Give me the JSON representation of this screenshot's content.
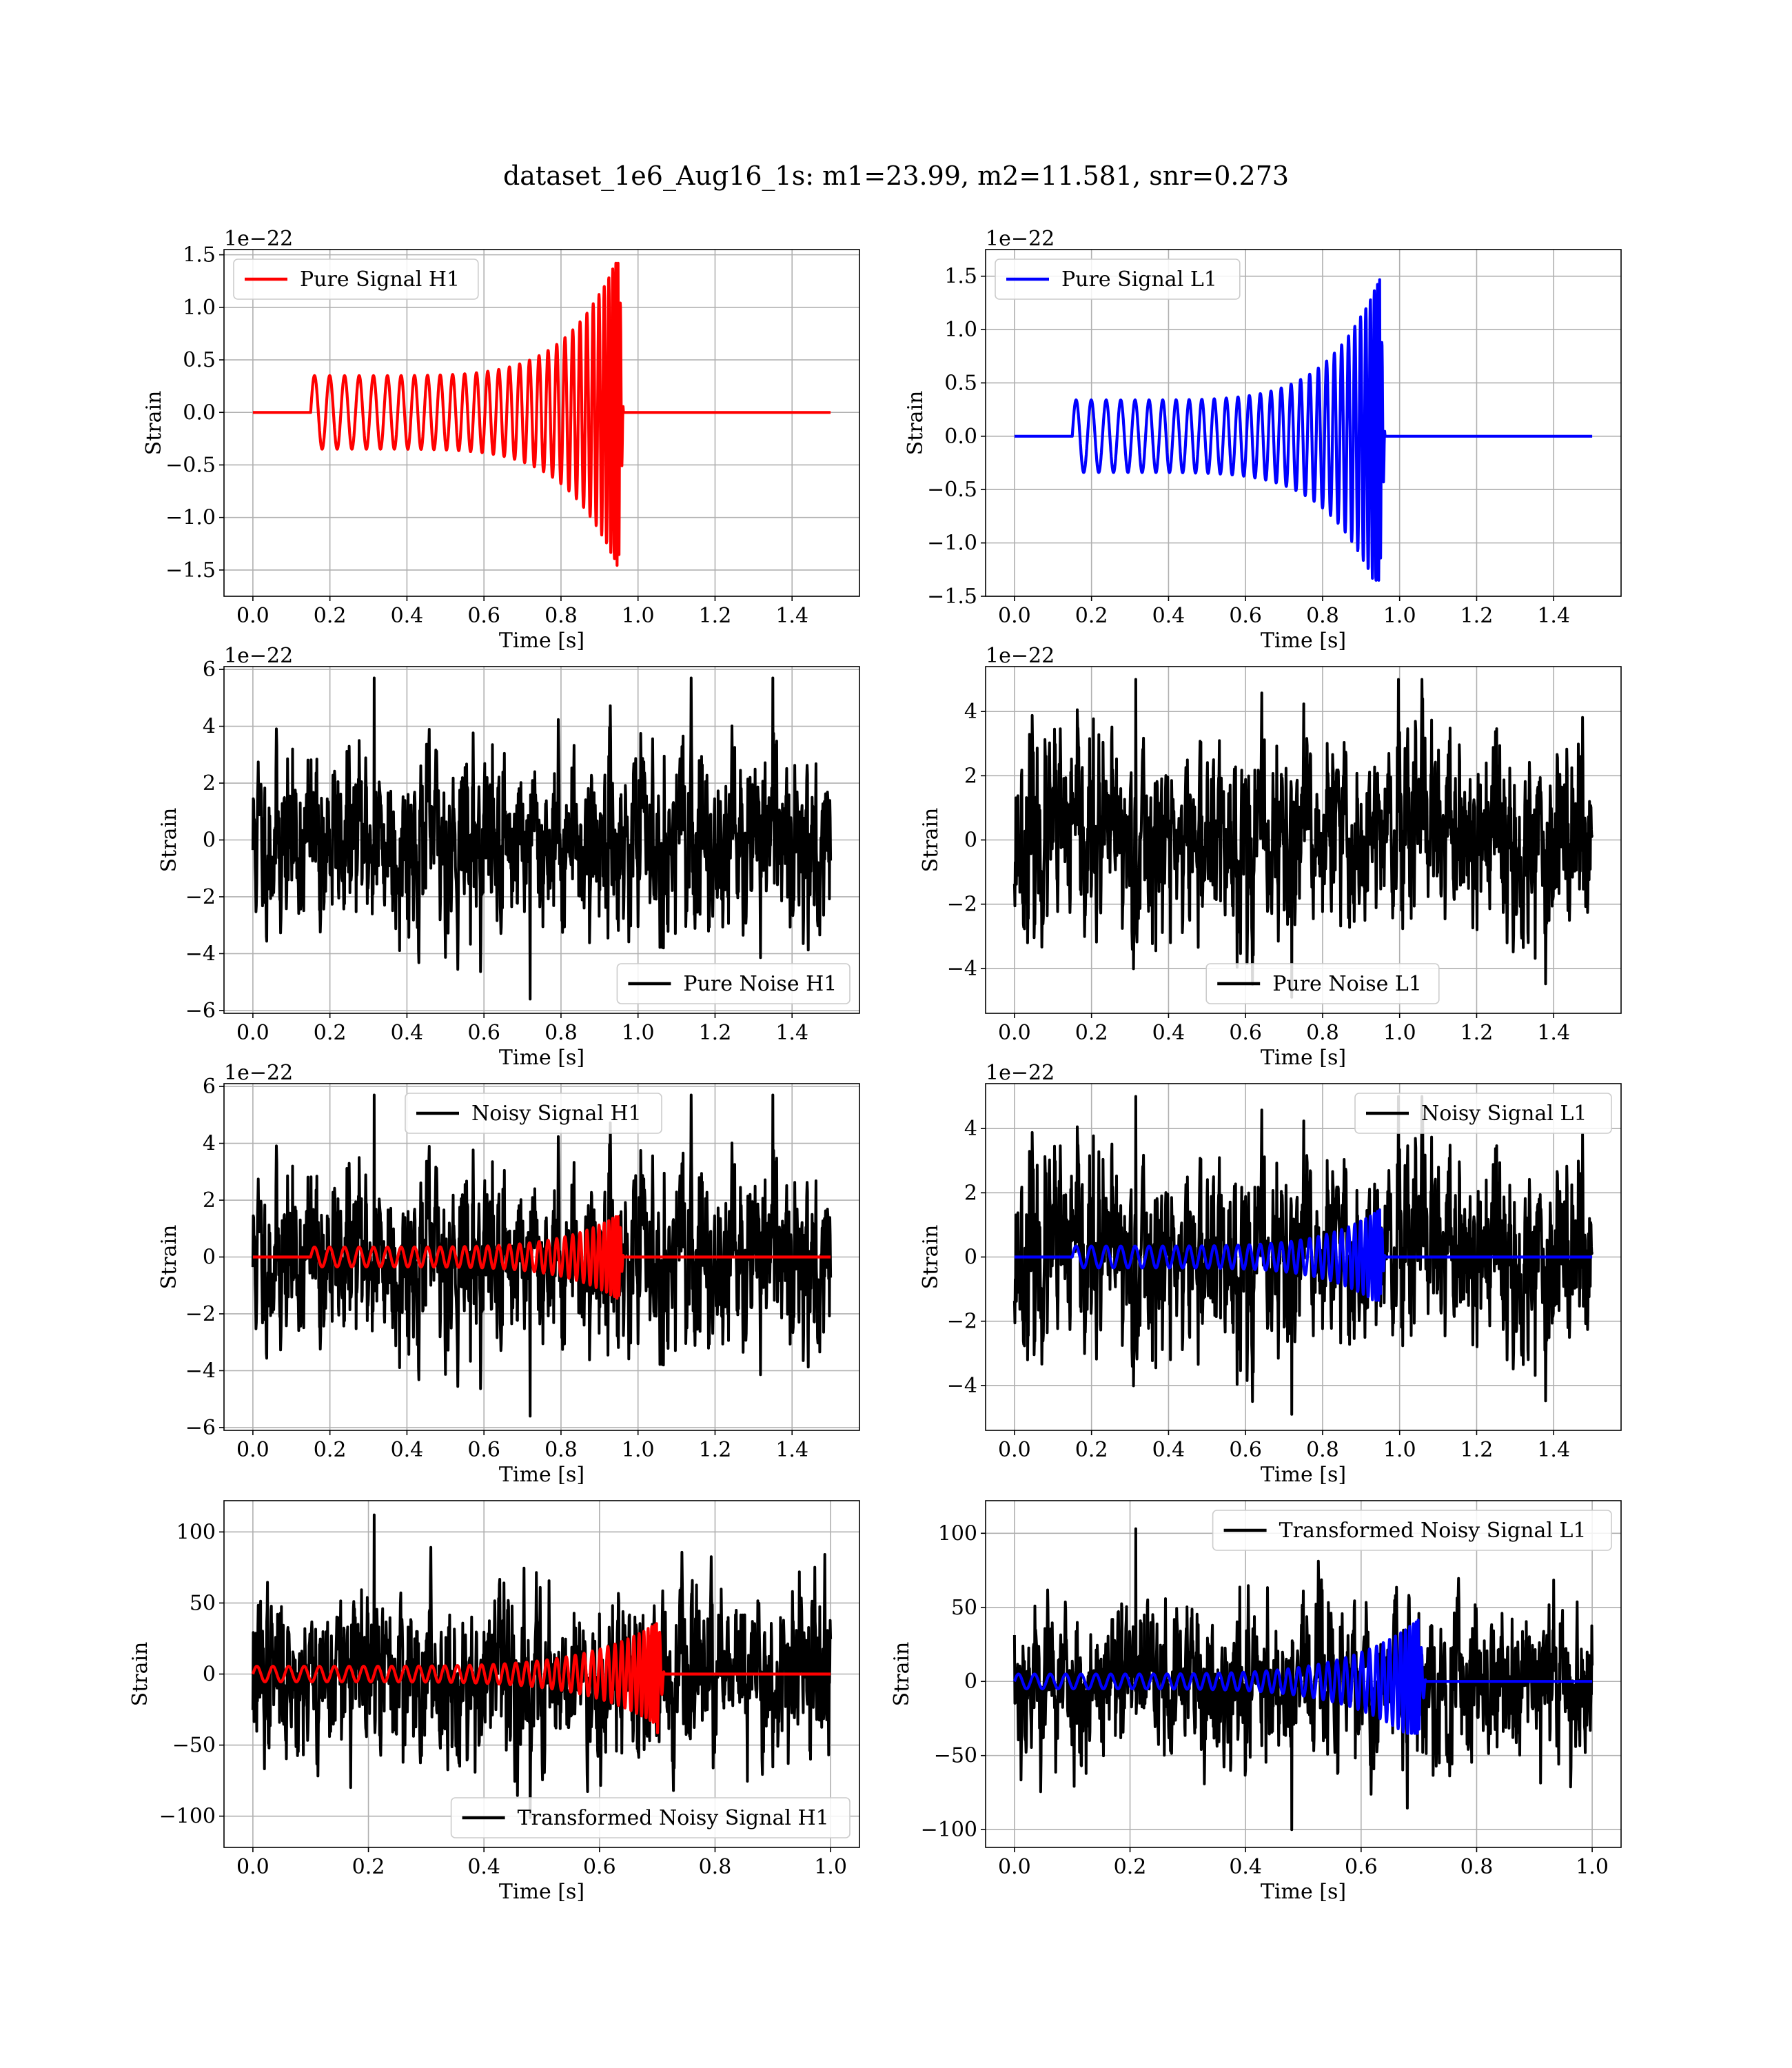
{
  "figure": {
    "title": "dataset_1e6_Aug16_1s: m1=23.99, m2=11.581, snr=0.273",
    "colors": {
      "h1_signal": "#ff0000",
      "l1_signal": "#0000ff",
      "noise": "#000000",
      "grid": "#b0b0b0"
    }
  },
  "chart_data": [
    {
      "id": "pure-signal-h1",
      "type": "line",
      "xlabel": "Time [s]",
      "ylabel": "Strain",
      "offset_text": "1e−22",
      "xlim": [
        -0.075,
        1.575
      ],
      "ylim": [
        -1.75,
        1.55
      ],
      "xticks": [
        0.0,
        0.2,
        0.4,
        0.6,
        0.8,
        1.0,
        1.2,
        1.4
      ],
      "xtick_labels": [
        "0.0",
        "0.2",
        "0.4",
        "0.6",
        "0.8",
        "1.0",
        "1.2",
        "1.4"
      ],
      "yticks": [
        -1.5,
        -1.0,
        -0.5,
        0.0,
        0.5,
        1.0,
        1.5
      ],
      "ytick_labels": [
        "−1.5",
        "−1.0",
        "−0.5",
        "0.0",
        "0.5",
        "1.0",
        "1.5"
      ],
      "grid": true,
      "legend_position": "upper-left",
      "series": [
        {
          "name": "Pure Signal H1",
          "color": "#ff0000",
          "kind": "chirp",
          "x_range": [
            0.0,
            1.5
          ],
          "onset": 0.15,
          "merger": 0.95,
          "amp_start": 0.35,
          "amp_peak": 1.5,
          "peak_neg": -1.6,
          "peak_pos": 1.42,
          "cycles": 32
        }
      ]
    },
    {
      "id": "pure-signal-l1",
      "type": "line",
      "xlabel": "Time [s]",
      "ylabel": "Strain",
      "offset_text": "1e−22",
      "xlim": [
        -0.075,
        1.575
      ],
      "ylim": [
        -1.5,
        1.75
      ],
      "xticks": [
        0.0,
        0.2,
        0.4,
        0.6,
        0.8,
        1.0,
        1.2,
        1.4
      ],
      "xtick_labels": [
        "0.0",
        "0.2",
        "0.4",
        "0.6",
        "0.8",
        "1.0",
        "1.2",
        "1.4"
      ],
      "yticks": [
        -1.5,
        -1.0,
        -0.5,
        0.0,
        0.5,
        1.0,
        1.5
      ],
      "ytick_labels": [
        "−1.5",
        "−1.0",
        "−0.5",
        "0.0",
        "0.5",
        "1.0",
        "1.5"
      ],
      "grid": true,
      "legend_position": "upper-left",
      "series": [
        {
          "name": "Pure Signal L1",
          "color": "#0000ff",
          "kind": "chirp",
          "x_range": [
            0.0,
            1.5
          ],
          "onset": 0.15,
          "merger": 0.95,
          "amp_start": 0.34,
          "amp_peak": 1.5,
          "peak_neg": -1.35,
          "peak_pos": 1.63,
          "cycles": 32
        }
      ]
    },
    {
      "id": "pure-noise-h1",
      "type": "line",
      "xlabel": "Time [s]",
      "ylabel": "Strain",
      "offset_text": "1e−22",
      "xlim": [
        -0.075,
        1.575
      ],
      "ylim": [
        -6.1,
        6.1
      ],
      "xticks": [
        0.0,
        0.2,
        0.4,
        0.6,
        0.8,
        1.0,
        1.2,
        1.4
      ],
      "xtick_labels": [
        "0.0",
        "0.2",
        "0.4",
        "0.6",
        "0.8",
        "1.0",
        "1.2",
        "1.4"
      ],
      "yticks": [
        -6,
        -4,
        -2,
        0,
        2,
        4,
        6
      ],
      "ytick_labels": [
        "−6",
        "−4",
        "−2",
        "0",
        "2",
        "4",
        "6"
      ],
      "grid": true,
      "legend_position": "lower-right",
      "series": [
        {
          "name": "Pure Noise H1",
          "color": "#000000",
          "kind": "noise",
          "x_range": [
            0.0,
            1.5
          ],
          "sigma": 1.5,
          "max": 5.7,
          "min": -5.6,
          "seed": 11
        }
      ]
    },
    {
      "id": "pure-noise-l1",
      "type": "line",
      "xlabel": "Time [s]",
      "ylabel": "Strain",
      "offset_text": "1e−22",
      "xlim": [
        -0.075,
        1.575
      ],
      "ylim": [
        -5.4,
        5.4
      ],
      "xticks": [
        0.0,
        0.2,
        0.4,
        0.6,
        0.8,
        1.0,
        1.2,
        1.4
      ],
      "xtick_labels": [
        "0.0",
        "0.2",
        "0.4",
        "0.6",
        "0.8",
        "1.0",
        "1.2",
        "1.4"
      ],
      "yticks": [
        -4,
        -2,
        0,
        2,
        4
      ],
      "ytick_labels": [
        "−4",
        "−2",
        "0",
        "2",
        "4"
      ],
      "grid": true,
      "legend_position": "lower-center",
      "series": [
        {
          "name": "Pure Noise L1",
          "color": "#000000",
          "kind": "noise",
          "x_range": [
            0.0,
            1.5
          ],
          "sigma": 1.45,
          "max": 5.0,
          "min": -4.9,
          "seed": 23
        }
      ]
    },
    {
      "id": "noisy-signal-h1",
      "type": "line",
      "xlabel": "Time [s]",
      "ylabel": "Strain",
      "offset_text": "1e−22",
      "xlim": [
        -0.075,
        1.575
      ],
      "ylim": [
        -6.1,
        6.1
      ],
      "xticks": [
        0.0,
        0.2,
        0.4,
        0.6,
        0.8,
        1.0,
        1.2,
        1.4
      ],
      "xtick_labels": [
        "0.0",
        "0.2",
        "0.4",
        "0.6",
        "0.8",
        "1.0",
        "1.2",
        "1.4"
      ],
      "yticks": [
        -6,
        -4,
        -2,
        0,
        2,
        4,
        6
      ],
      "ytick_labels": [
        "−6",
        "−4",
        "−2",
        "0",
        "2",
        "4",
        "6"
      ],
      "grid": true,
      "legend_position": "upper-center",
      "series": [
        {
          "name": "Noisy Signal H1",
          "color": "#000000",
          "kind": "noise",
          "x_range": [
            0.0,
            1.5
          ],
          "sigma": 1.5,
          "max": 5.7,
          "min": -5.6,
          "seed": 11
        },
        {
          "color": "#ff0000",
          "kind": "chirp",
          "x_range": [
            0.0,
            1.5
          ],
          "onset": 0.15,
          "merger": 0.95,
          "amp_start": 0.35,
          "amp_peak": 1.5,
          "peak_neg": -1.6,
          "peak_pos": 1.42,
          "cycles": 32
        }
      ]
    },
    {
      "id": "noisy-signal-l1",
      "type": "line",
      "xlabel": "Time [s]",
      "ylabel": "Strain",
      "offset_text": "1e−22",
      "xlim": [
        -0.075,
        1.575
      ],
      "ylim": [
        -5.4,
        5.4
      ],
      "xticks": [
        0.0,
        0.2,
        0.4,
        0.6,
        0.8,
        1.0,
        1.2,
        1.4
      ],
      "xtick_labels": [
        "0.0",
        "0.2",
        "0.4",
        "0.6",
        "0.8",
        "1.0",
        "1.2",
        "1.4"
      ],
      "yticks": [
        -4,
        -2,
        0,
        2,
        4
      ],
      "ytick_labels": [
        "−4",
        "−2",
        "0",
        "2",
        "4"
      ],
      "grid": true,
      "legend_position": "upper-right",
      "series": [
        {
          "name": "Noisy Signal L1",
          "color": "#000000",
          "kind": "noise",
          "x_range": [
            0.0,
            1.5
          ],
          "sigma": 1.45,
          "max": 5.0,
          "min": -4.9,
          "seed": 23
        },
        {
          "color": "#0000ff",
          "kind": "chirp",
          "x_range": [
            0.0,
            1.5
          ],
          "onset": 0.15,
          "merger": 0.95,
          "amp_start": 0.34,
          "amp_peak": 1.5,
          "peak_neg": -1.35,
          "peak_pos": 1.63,
          "cycles": 32
        }
      ]
    },
    {
      "id": "transformed-noisy-signal-h1",
      "type": "line",
      "xlabel": "Time [s]",
      "ylabel": "Strain",
      "offset_text": "",
      "xlim": [
        -0.05,
        1.05
      ],
      "ylim": [
        -122,
        122
      ],
      "xticks": [
        0.0,
        0.2,
        0.4,
        0.6,
        0.8,
        1.0
      ],
      "xtick_labels": [
        "0.0",
        "0.2",
        "0.4",
        "0.6",
        "0.8",
        "1.0"
      ],
      "yticks": [
        -100,
        -50,
        0,
        50,
        100
      ],
      "ytick_labels": [
        "−100",
        "−50",
        "0",
        "50",
        "100"
      ],
      "grid": true,
      "legend_position": "lower-right",
      "series": [
        {
          "name": "Transformed Noisy Signal H1",
          "color": "#000000",
          "kind": "noise",
          "x_range": [
            0.0,
            1.0
          ],
          "sigma": 27,
          "max": 112,
          "min": -101,
          "seed": 37
        },
        {
          "color": "#ff0000",
          "kind": "chirp",
          "x_range": [
            0.0,
            1.0
          ],
          "onset": 0.0,
          "merger": 0.7,
          "amp_start": 5.5,
          "amp_peak": 36,
          "peak_neg": -45,
          "peak_pos": 37,
          "cycles": 40
        }
      ]
    },
    {
      "id": "transformed-noisy-signal-l1",
      "type": "line",
      "xlabel": "Time [s]",
      "ylabel": "Strain",
      "offset_text": "",
      "xlim": [
        -0.05,
        1.05
      ],
      "ylim": [
        -112,
        122
      ],
      "xticks": [
        0.0,
        0.2,
        0.4,
        0.6,
        0.8,
        1.0
      ],
      "xtick_labels": [
        "0.0",
        "0.2",
        "0.4",
        "0.6",
        "0.8",
        "1.0"
      ],
      "yticks": [
        -100,
        -50,
        0,
        50,
        100
      ],
      "ytick_labels": [
        "−100",
        "−50",
        "0",
        "50",
        "100"
      ],
      "grid": true,
      "legend_position": "upper-right",
      "series": [
        {
          "name": "Transformed Noisy Signal L1",
          "color": "#000000",
          "kind": "noise",
          "x_range": [
            0.0,
            1.0
          ],
          "sigma": 26,
          "max": 103,
          "min": -100,
          "seed": 53
        },
        {
          "color": "#0000ff",
          "kind": "chirp",
          "x_range": [
            0.0,
            1.0
          ],
          "onset": 0.0,
          "merger": 0.7,
          "amp_start": 5,
          "amp_peak": 42,
          "peak_neg": -35,
          "peak_pos": 43,
          "cycles": 40
        }
      ]
    }
  ]
}
